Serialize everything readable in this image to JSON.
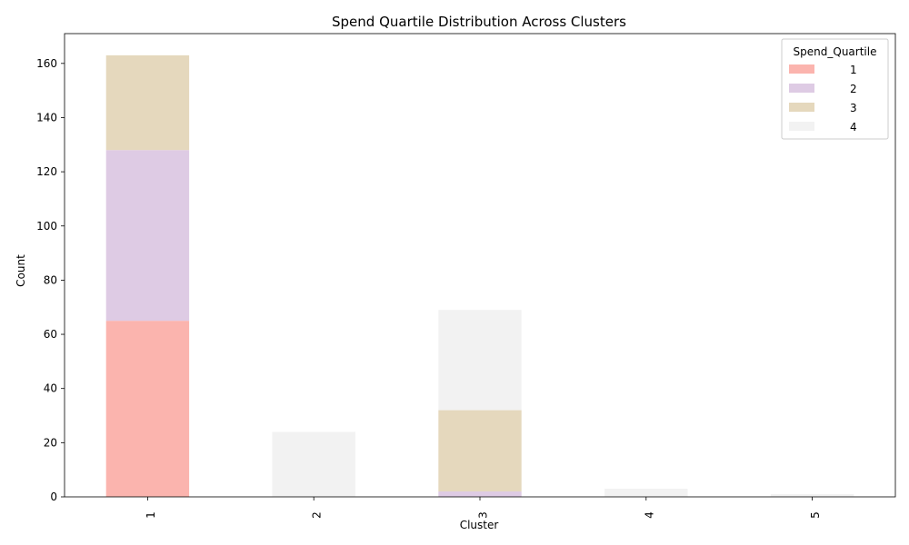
{
  "chart_data": {
    "type": "bar",
    "stacked": true,
    "title": "Spend Quartile Distribution Across Clusters",
    "xlabel": "Cluster",
    "ylabel": "Count",
    "categories": [
      "1",
      "2",
      "3",
      "4",
      "5"
    ],
    "ylim": [
      0,
      171
    ],
    "yticks": [
      0,
      20,
      40,
      60,
      80,
      100,
      120,
      140,
      160
    ],
    "legend": {
      "title": "Spend_Quartile",
      "placement": "top-right"
    },
    "series": [
      {
        "name": "1",
        "color": "#fbb4ae",
        "values": [
          65,
          0,
          0,
          0,
          0
        ]
      },
      {
        "name": "2",
        "color": "#decbe4",
        "values": [
          63,
          0,
          2,
          0,
          0
        ]
      },
      {
        "name": "3",
        "color": "#e5d8bd",
        "values": [
          35,
          0,
          30,
          0,
          0
        ]
      },
      {
        "name": "4",
        "color": "#f2f2f2",
        "values": [
          0,
          24,
          37,
          3,
          1
        ]
      }
    ]
  }
}
